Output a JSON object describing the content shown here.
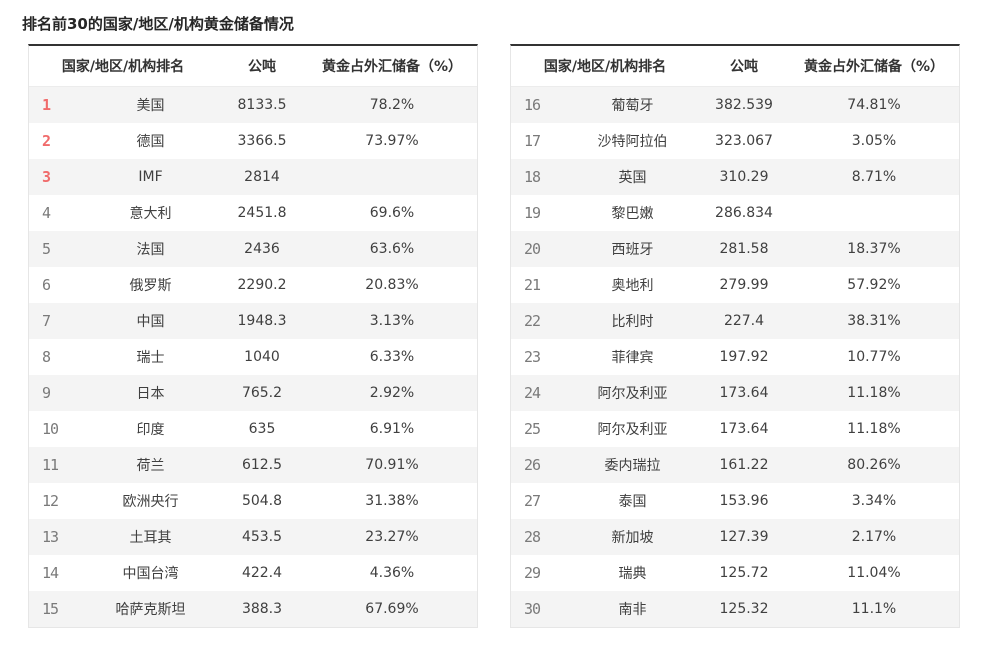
{
  "page_title": "排名前30的国家/地区/机构黄金储备情况",
  "table_headers": {
    "rank_name": "国家/地区/机构排名",
    "tonnes": "公吨",
    "gold_fx_pct": "黄金占外汇储备（%）"
  },
  "colors": {
    "top3_rank": "#f06b6b",
    "rank_gray": "#7a7a7a",
    "zebra_row": "#f4f4f4",
    "table_top_border": "#333333"
  },
  "tables": [
    {
      "id": "ranks-1-15",
      "rows": [
        {
          "rank": "1",
          "name": "美国",
          "tonnes": "8133.5",
          "pct": "78.2%"
        },
        {
          "rank": "2",
          "name": "德国",
          "tonnes": "3366.5",
          "pct": "73.97%"
        },
        {
          "rank": "3",
          "name": "IMF",
          "tonnes": "2814",
          "pct": ""
        },
        {
          "rank": "4",
          "name": "意大利",
          "tonnes": "2451.8",
          "pct": "69.6%"
        },
        {
          "rank": "5",
          "name": "法国",
          "tonnes": "2436",
          "pct": "63.6%"
        },
        {
          "rank": "6",
          "name": "俄罗斯",
          "tonnes": "2290.2",
          "pct": "20.83%"
        },
        {
          "rank": "7",
          "name": "中国",
          "tonnes": "1948.3",
          "pct": "3.13%"
        },
        {
          "rank": "8",
          "name": "瑞士",
          "tonnes": "1040",
          "pct": "6.33%"
        },
        {
          "rank": "9",
          "name": "日本",
          "tonnes": "765.2",
          "pct": "2.92%"
        },
        {
          "rank": "10",
          "name": "印度",
          "tonnes": "635",
          "pct": "6.91%"
        },
        {
          "rank": "11",
          "name": "荷兰",
          "tonnes": "612.5",
          "pct": "70.91%"
        },
        {
          "rank": "12",
          "name": "欧洲央行",
          "tonnes": "504.8",
          "pct": "31.38%"
        },
        {
          "rank": "13",
          "name": "土耳其",
          "tonnes": "453.5",
          "pct": "23.27%"
        },
        {
          "rank": "14",
          "name": "中国台湾",
          "tonnes": "422.4",
          "pct": "4.36%"
        },
        {
          "rank": "15",
          "name": "哈萨克斯坦",
          "tonnes": "388.3",
          "pct": "67.69%"
        }
      ]
    },
    {
      "id": "ranks-16-30",
      "rows": [
        {
          "rank": "16",
          "name": "葡萄牙",
          "tonnes": "382.539",
          "pct": "74.81%"
        },
        {
          "rank": "17",
          "name": "沙特阿拉伯",
          "tonnes": "323.067",
          "pct": "3.05%"
        },
        {
          "rank": "18",
          "name": "英国",
          "tonnes": "310.29",
          "pct": "8.71%"
        },
        {
          "rank": "19",
          "name": "黎巴嫩",
          "tonnes": "286.834",
          "pct": ""
        },
        {
          "rank": "20",
          "name": "西班牙",
          "tonnes": "281.58",
          "pct": "18.37%"
        },
        {
          "rank": "21",
          "name": "奥地利",
          "tonnes": "279.99",
          "pct": "57.92%"
        },
        {
          "rank": "22",
          "name": "比利时",
          "tonnes": "227.4",
          "pct": "38.31%"
        },
        {
          "rank": "23",
          "name": "菲律宾",
          "tonnes": "197.92",
          "pct": "10.77%"
        },
        {
          "rank": "24",
          "name": "阿尔及利亚",
          "tonnes": "173.64",
          "pct": "11.18%"
        },
        {
          "rank": "25",
          "name": "阿尔及利亚",
          "tonnes": "173.64",
          "pct": "11.18%"
        },
        {
          "rank": "26",
          "name": "委内瑞拉",
          "tonnes": "161.22",
          "pct": "80.26%"
        },
        {
          "rank": "27",
          "name": "泰国",
          "tonnes": "153.96",
          "pct": "3.34%"
        },
        {
          "rank": "28",
          "name": "新加坡",
          "tonnes": "127.39",
          "pct": "2.17%"
        },
        {
          "rank": "29",
          "name": "瑞典",
          "tonnes": "125.72",
          "pct": "11.04%"
        },
        {
          "rank": "30",
          "name": "南非",
          "tonnes": "125.32",
          "pct": "11.1%"
        }
      ]
    }
  ]
}
